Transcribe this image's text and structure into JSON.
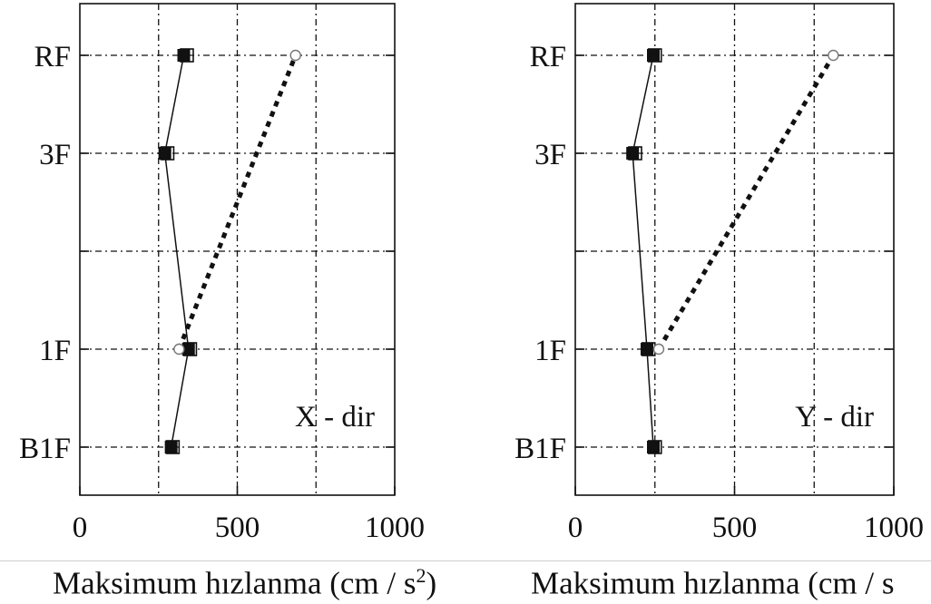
{
  "chart_data": [
    {
      "type": "line",
      "annotation": "X - dir",
      "xlabel": "Maksimum hızlanma (cm / s",
      "xlabel_sup": "2",
      "xlabel_end": ")",
      "xlim": [
        0,
        1000
      ],
      "x_ticks": [
        "0",
        "500",
        "1000"
      ],
      "y_categories": [
        "B1F",
        "1F",
        "",
        "3F",
        "RF"
      ],
      "grid": true,
      "series": [
        {
          "marker": "filled-square",
          "line": "solid",
          "color": "#111111",
          "x": [
            290,
            345,
            270,
            330
          ],
          "y": [
            "B1F",
            "1F",
            "3F",
            "RF"
          ]
        },
        {
          "marker": "open-square",
          "line": "none",
          "color": "#111111",
          "x": [
            295,
            350,
            278,
            340
          ],
          "y": [
            "B1F",
            "1F",
            "3F",
            "RF"
          ]
        },
        {
          "marker": "open-circle",
          "line": "dotted",
          "color": "#111111",
          "x": [
            315,
            685
          ],
          "y": [
            "1F",
            "RF"
          ]
        }
      ]
    },
    {
      "type": "line",
      "annotation": "Y - dir",
      "xlabel": "Maksimum hızlanma (cm / s",
      "xlabel_sup": "",
      "xlabel_end": "",
      "xlim": [
        0,
        1000
      ],
      "x_ticks": [
        "0",
        "500",
        "1000"
      ],
      "y_categories": [
        "B1F",
        "1F",
        "",
        "3F",
        "RF"
      ],
      "grid": true,
      "series": [
        {
          "marker": "filled-square",
          "line": "solid",
          "color": "#111111",
          "x": [
            245,
            225,
            180,
            245
          ],
          "y": [
            "B1F",
            "1F",
            "3F",
            "RF"
          ]
        },
        {
          "marker": "open-square",
          "line": "none",
          "color": "#111111",
          "x": [
            250,
            230,
            188,
            250
          ],
          "y": [
            "B1F",
            "1F",
            "3F",
            "RF"
          ]
        },
        {
          "marker": "open-circle",
          "line": "dotted",
          "color": "#111111",
          "x": [
            262,
            810
          ],
          "y": [
            "1F",
            "RF"
          ]
        }
      ]
    }
  ]
}
